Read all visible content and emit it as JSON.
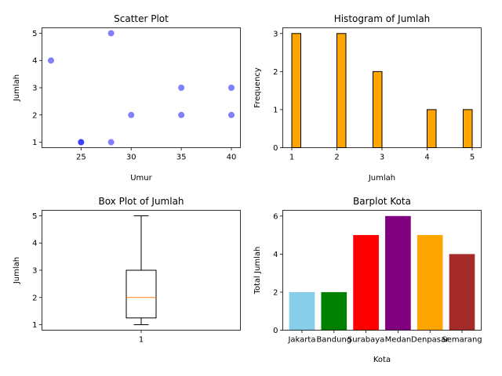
{
  "chart_data": [
    {
      "type": "scatter",
      "title": "Scatter Plot",
      "xlabel": "Umur",
      "ylabel": "Jumlah",
      "xlim": [
        21.1,
        40.9
      ],
      "ylim": [
        0.8,
        5.2
      ],
      "xticks": [
        25,
        30,
        35,
        40
      ],
      "yticks": [
        1,
        2,
        3,
        4,
        5
      ],
      "color": "#0000ff",
      "alpha": 0.5,
      "points": [
        {
          "x": 22,
          "y": 4
        },
        {
          "x": 25,
          "y": 1
        },
        {
          "x": 25,
          "y": 1
        },
        {
          "x": 28,
          "y": 5
        },
        {
          "x": 28,
          "y": 1
        },
        {
          "x": 30,
          "y": 2
        },
        {
          "x": 35,
          "y": 3
        },
        {
          "x": 35,
          "y": 2
        },
        {
          "x": 40,
          "y": 3
        },
        {
          "x": 40,
          "y": 2
        }
      ]
    },
    {
      "type": "bar",
      "title": "Histogram of Jumlah",
      "xlabel": "Jumlah",
      "ylabel": "Frequency",
      "xlim": [
        0.8,
        5.2
      ],
      "ylim": [
        0,
        3.15
      ],
      "xticks": [
        1,
        2,
        3,
        4,
        5
      ],
      "yticks": [
        0,
        1,
        2,
        3
      ],
      "color": "#ffa500",
      "edgecolor": "#000000",
      "bins": [
        {
          "start": 1.0,
          "end": 1.2,
          "count": 3
        },
        {
          "start": 2.0,
          "end": 2.2,
          "count": 3
        },
        {
          "start": 2.8,
          "end": 3.0,
          "count": 2
        },
        {
          "start": 4.0,
          "end": 4.2,
          "count": 1
        },
        {
          "start": 4.8,
          "end": 5.0,
          "count": 1
        }
      ]
    },
    {
      "type": "box",
      "title": "Box Plot of Jumlah",
      "xlabel": "",
      "ylabel": "Jumlah",
      "ylim": [
        0.8,
        5.2
      ],
      "yticks": [
        1,
        2,
        3,
        4,
        5
      ],
      "categories": [
        "1"
      ],
      "box": {
        "min": 1,
        "q1": 1.25,
        "median": 2,
        "q3": 3,
        "max": 5
      },
      "median_color": "#ff7f0e"
    },
    {
      "type": "bar",
      "title": "Barplot Kota",
      "xlabel": "Kota",
      "ylabel": "Total Jumlah",
      "ylim": [
        0,
        6.3
      ],
      "yticks": [
        0,
        2,
        4,
        6
      ],
      "categories": [
        "Jakarta",
        "Bandung",
        "Surabaya",
        "Medan",
        "Denpasar",
        "Semarang"
      ],
      "values": [
        2,
        2,
        5,
        6,
        5,
        4
      ],
      "colors": [
        "#87ceeb",
        "#008000",
        "#ff0000",
        "#800080",
        "#ffa500",
        "#a52a2a"
      ]
    }
  ]
}
